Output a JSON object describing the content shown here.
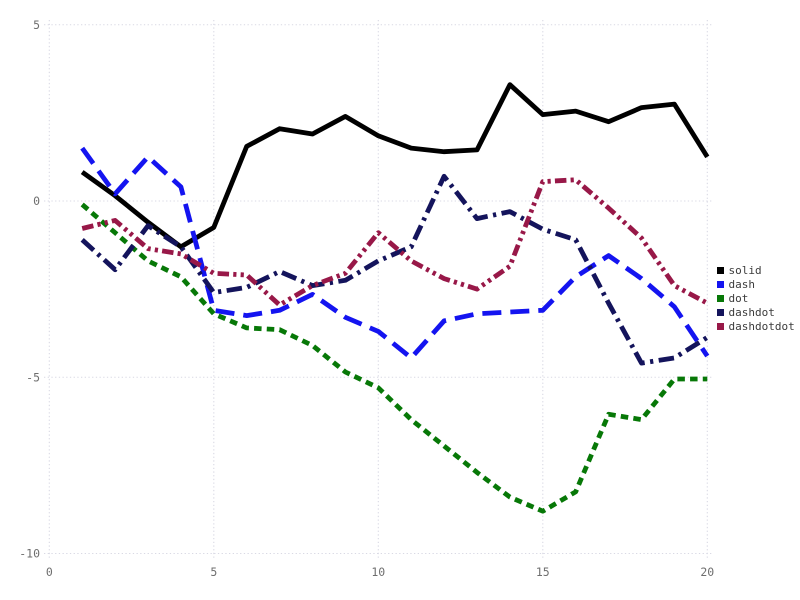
{
  "chart_data": {
    "type": "line",
    "title": "",
    "xlabel": "",
    "ylabel": "",
    "grid": true,
    "grid_color": "#d9d9e4",
    "background_color": "#ffffff",
    "tick_label_color": "#6e6e6e",
    "legend_text_color": "#3c3c3c",
    "legend_position": "right",
    "x_ticks": [
      0,
      5,
      10,
      15,
      20
    ],
    "y_ticks": [
      5,
      0,
      -5,
      -10
    ],
    "xlim": [
      -0.2,
      20.1
    ],
    "ylim": [
      -10.2,
      5.15
    ],
    "x": [
      1,
      2,
      3,
      4,
      5,
      6,
      7,
      8,
      9,
      10,
      11,
      12,
      13,
      14,
      15,
      16,
      17,
      18,
      19,
      20
    ],
    "series": [
      {
        "name": "solid",
        "line_style": "solid",
        "color": "#000000",
        "values": [
          0.82,
          0.15,
          -0.6,
          -1.3,
          -0.75,
          1.55,
          2.05,
          1.9,
          2.4,
          1.85,
          1.5,
          1.4,
          1.45,
          3.3,
          2.45,
          2.55,
          2.25,
          2.65,
          2.75,
          1.25
        ]
      },
      {
        "name": "dash",
        "line_style": "dash",
        "color": "#1414f0",
        "values": [
          1.5,
          0.2,
          1.25,
          0.4,
          -3.1,
          -3.25,
          -3.1,
          -2.65,
          -3.3,
          -3.7,
          -4.45,
          -3.4,
          -3.2,
          -3.15,
          -3.1,
          -2.15,
          -1.55,
          -2.2,
          -3.0,
          -4.4
        ]
      },
      {
        "name": "dot",
        "line_style": "dot",
        "color": "#077807",
        "values": [
          -0.1,
          -0.9,
          -1.7,
          -2.15,
          -3.2,
          -3.6,
          -3.65,
          -4.1,
          -4.85,
          -5.3,
          -6.2,
          -6.95,
          -7.7,
          -8.4,
          -8.8,
          -8.25,
          -6.05,
          -6.2,
          -5.05,
          -5.05
        ]
      },
      {
        "name": "dashdot",
        "line_style": "dashdot",
        "color": "#14145c",
        "values": [
          -1.1,
          -1.95,
          -0.7,
          -1.3,
          -2.6,
          -2.45,
          -2.0,
          -2.4,
          -2.25,
          -1.7,
          -1.3,
          0.7,
          -0.5,
          -0.3,
          -0.8,
          -1.1,
          -2.9,
          -4.6,
          -4.45,
          -3.87
        ]
      },
      {
        "name": "dashdotdot",
        "line_style": "dashdotdot",
        "color": "#981848",
        "values": [
          -0.78,
          -0.55,
          -1.35,
          -1.5,
          -2.05,
          -2.1,
          -2.95,
          -2.4,
          -2.05,
          -0.9,
          -1.7,
          -2.2,
          -2.5,
          -1.85,
          0.55,
          0.6,
          -0.2,
          -1.05,
          -2.4,
          -2.9
        ]
      }
    ],
    "legend_entries": [
      "solid",
      "dash",
      "dot",
      "dashdot",
      "dashdotdot"
    ]
  }
}
